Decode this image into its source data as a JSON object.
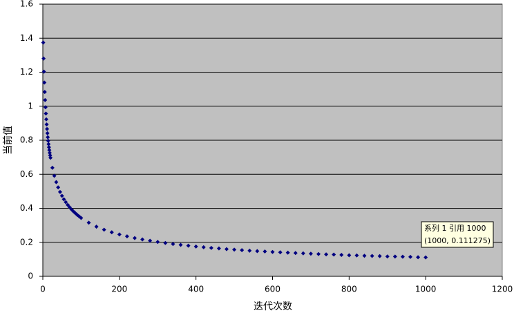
{
  "chart_data": {
    "type": "scatter",
    "x_label": "迭代次数",
    "y_label": "当前值",
    "annotations": [
      "系列 1 引用 1000",
      "(1000, 0.111275)"
    ],
    "xlim": [
      0,
      1200
    ],
    "xticks": [
      0,
      200,
      400,
      600,
      800,
      1000,
      1200
    ],
    "ylim": [
      0,
      1.6
    ],
    "yticks": [
      0,
      0.2,
      0.4,
      0.6,
      0.8,
      1,
      1.2,
      1.4,
      1.6
    ],
    "grid": true,
    "background": "#c0c0c0",
    "series": [
      {
        "color": "#000080",
        "x": [
          1,
          2,
          3,
          4,
          5,
          6,
          7,
          8,
          9,
          10,
          11,
          12,
          13,
          14,
          15,
          16,
          17,
          18,
          19,
          20,
          25,
          30,
          35,
          40,
          45,
          50,
          55,
          60,
          65,
          70,
          75,
          80,
          85,
          90,
          95,
          100,
          120,
          140,
          160,
          180,
          200,
          220,
          240,
          260,
          280,
          300,
          320,
          340,
          360,
          380,
          400,
          420,
          440,
          460,
          480,
          500,
          520,
          540,
          560,
          580,
          600,
          620,
          640,
          660,
          680,
          700,
          720,
          740,
          760,
          780,
          800,
          820,
          840,
          860,
          880,
          900,
          920,
          940,
          960,
          980,
          1000
        ],
        "values": [
          1.374,
          1.28,
          1.203,
          1.139,
          1.084,
          1.036,
          0.994,
          0.957,
          0.923,
          0.893,
          0.866,
          0.841,
          0.818,
          0.797,
          0.777,
          0.759,
          0.742,
          0.726,
          0.711,
          0.697,
          0.638,
          0.591,
          0.554,
          0.523,
          0.496,
          0.473,
          0.453,
          0.436,
          0.42,
          0.406,
          0.393,
          0.381,
          0.371,
          0.361,
          0.352,
          0.343,
          0.315,
          0.292,
          0.274,
          0.259,
          0.246,
          0.235,
          0.225,
          0.217,
          0.209,
          0.202,
          0.196,
          0.19,
          0.185,
          0.18,
          0.175,
          0.171,
          0.167,
          0.164,
          0.16,
          0.157,
          0.154,
          0.151,
          0.148,
          0.146,
          0.143,
          0.141,
          0.139,
          0.137,
          0.135,
          0.133,
          0.131,
          0.129,
          0.128,
          0.126,
          0.124,
          0.123,
          0.121,
          0.12,
          0.119,
          0.117,
          0.116,
          0.115,
          0.114,
          0.112,
          0.111275
        ]
      }
    ]
  }
}
